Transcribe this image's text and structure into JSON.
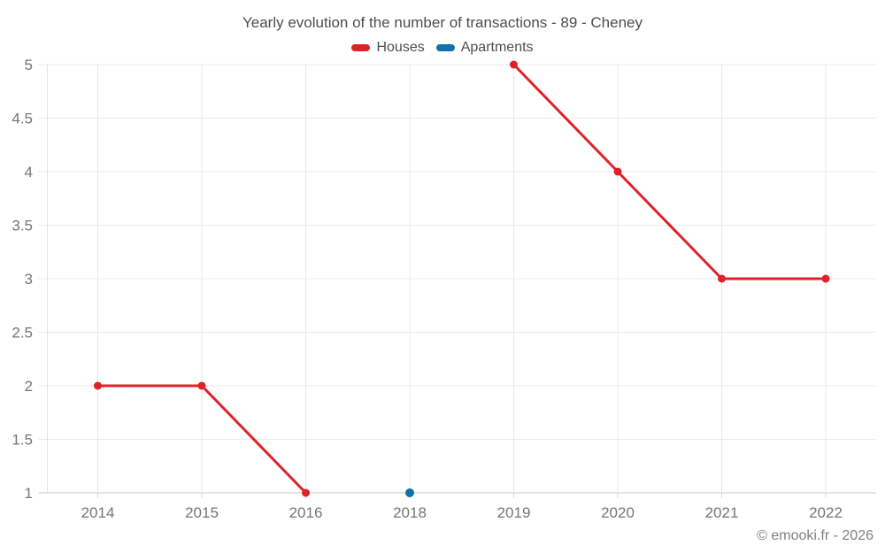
{
  "title": "Yearly evolution of the number of transactions - 89 - Cheney",
  "footer": "© emooki.fr - 2026",
  "colors": {
    "houses": "#e02128",
    "apartments": "#1171a8",
    "grid": "#e9e9e9",
    "axis_bottom": "#c9c9c9",
    "axis_left": "#e3e3e3",
    "x_tick": "#d9d9d9",
    "tick_label": "#757575",
    "title_text": "#4d4d4d",
    "footer_text": "#808080",
    "background": "#ffffff"
  },
  "chart_data": {
    "type": "line",
    "title": "Yearly evolution of the number of transactions - 89 - Cheney",
    "xlabel": "",
    "ylabel": "",
    "categories": [
      "2014",
      "2015",
      "2016",
      "2018",
      "2019",
      "2020",
      "2021",
      "2022"
    ],
    "series": [
      {
        "name": "Houses",
        "color": "#e02128",
        "values": [
          2,
          2,
          1,
          null,
          5,
          4,
          3,
          3
        ]
      },
      {
        "name": "Apartments",
        "color": "#1171a8",
        "values": [
          null,
          null,
          null,
          1,
          null,
          null,
          null,
          null
        ]
      }
    ],
    "y_ticks": [
      1,
      1.5,
      2,
      2.5,
      3,
      3.5,
      4,
      4.5,
      5
    ],
    "ylim": [
      1,
      5
    ],
    "grid": true,
    "legend_position": "top",
    "notes": "Houses line is broken between 2016 and 2019 (no data for 2017/2018); Apartments has a single point at 2018 = 1"
  }
}
